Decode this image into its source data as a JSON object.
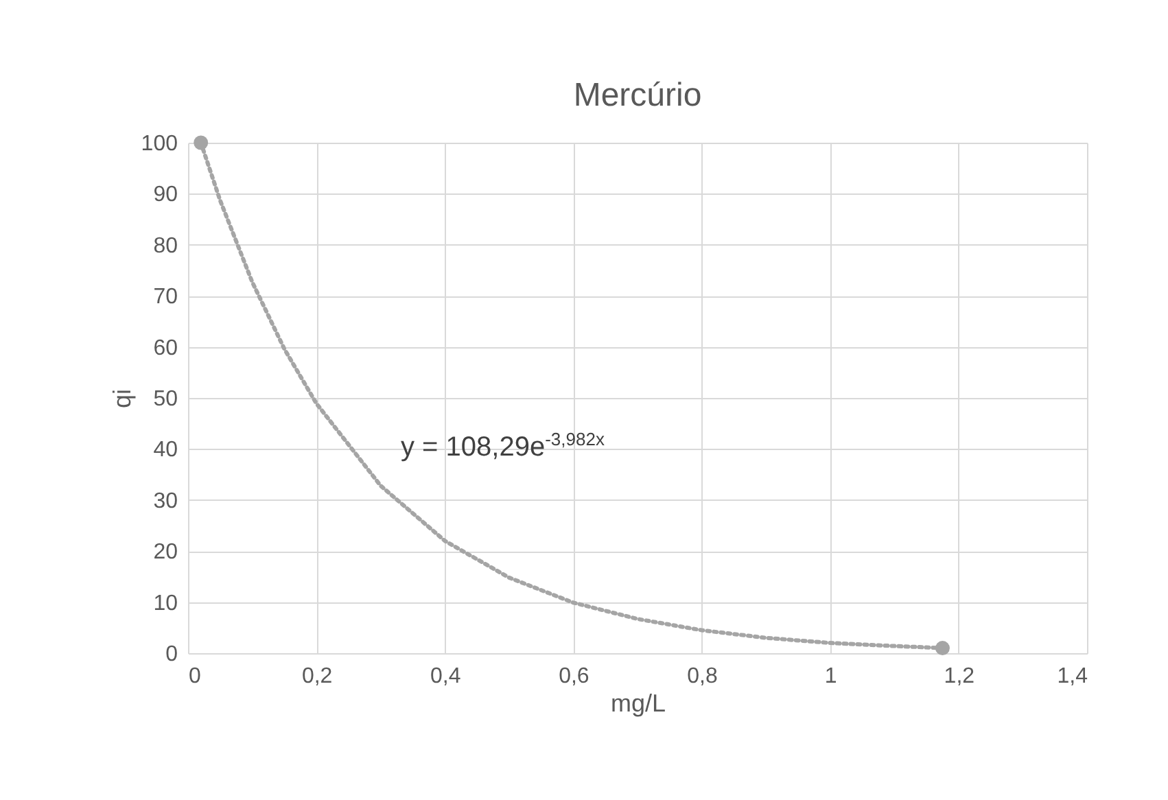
{
  "chart_data": {
    "type": "scatter",
    "title": "Mercúrio",
    "xlabel": "mg/L",
    "ylabel": "qi",
    "series": [
      {
        "color": "#a5a5a5",
        "x": [
          0.02,
          1.175
        ],
        "values": [
          100,
          1
        ]
      },
      {
        "type": "line",
        "color": "#a5a5a5",
        "line_style": "dotted",
        "marker": "none",
        "x": [
          0.02,
          0.05,
          0.1,
          0.15,
          0.2,
          0.3,
          0.4,
          0.5,
          0.6,
          0.7,
          0.8,
          0.9,
          1.0,
          1.1,
          1.175
        ],
        "values": [
          100,
          88.7,
          72.7,
          59.6,
          48.9,
          32.8,
          22.0,
          14.8,
          9.9,
          6.7,
          4.5,
          3.0,
          2.0,
          1.4,
          1.0
        ]
      }
    ],
    "xlim": [
      0,
      1.4
    ],
    "xticks": [
      0,
      {
        "value": 0.2,
        "label": "0,2"
      },
      {
        "value": 0.4,
        "label": "0,4"
      },
      {
        "value": 0.6,
        "label": "0,6"
      },
      {
        "value": 0.8,
        "label": "0,8"
      },
      1,
      {
        "value": 1.2,
        "label": "1,2"
      },
      {
        "value": 1.4,
        "label": "1,4"
      }
    ],
    "ylim": [
      0,
      100
    ],
    "yticks": [
      0,
      10,
      20,
      30,
      40,
      50,
      60,
      70,
      80,
      90,
      100
    ],
    "grid": true,
    "marker": "circle",
    "annotations": [
      "y = 108,29e$^{-3,982x}$"
    ]
  }
}
